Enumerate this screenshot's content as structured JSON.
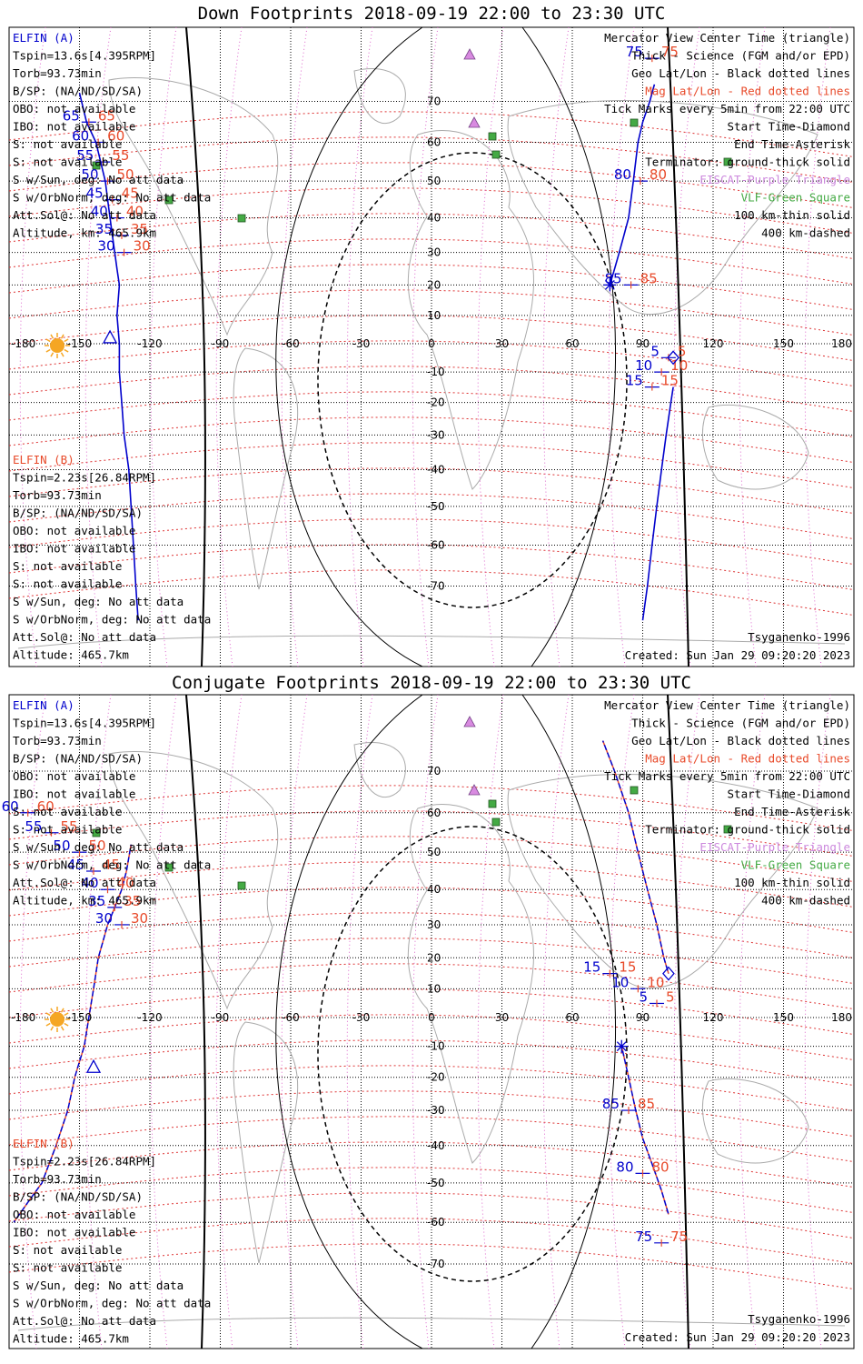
{
  "panels": [
    {
      "title": "Down Footprints 2018-09-19 22:00 to 23:30 UTC",
      "elfin_a": {
        "header": "ELFIN (A)",
        "lines": [
          "Tspin=13.6s[4.395RPM]",
          "Torb=93.73min",
          "B/SP: (NA/ND/SD/SA)",
          "OBO: not available",
          "IBO: not available",
          "S: not available",
          "S: not available",
          "S w/Sun, deg: No att data",
          "S w/OrbNorm, deg: No att data",
          "Att.Sol@: No att data",
          "Altitude, km: 465.9km"
        ]
      },
      "elfin_b": {
        "header": "ELFIN (B)",
        "lines": [
          "Tspin=2.23s[26.84RPM]",
          "Torb=93.73min",
          "B/SP: (NA/ND/SD/SA)",
          "OBO: not available",
          "IBO: not available",
          "S: not available",
          "S: not available",
          "S w/Sun, deg: No att data",
          "S w/OrbNorm, deg: No att data",
          "Att.Sol@: No att data",
          "Altitude: 465.7km"
        ]
      },
      "legend": [
        {
          "text": "Mercator View Center Time (triangle)",
          "color": "black"
        },
        {
          "text": "Thick - Science (FGM and/or EPD)",
          "color": "black"
        },
        {
          "text": "Geo Lat/Lon - Black dotted lines",
          "color": "black"
        },
        {
          "text": "Mag Lat/Lon - Red dotted lines",
          "color": "red"
        },
        {
          "text": "Tick Marks every 5min from 22:00 UTC",
          "color": "black"
        },
        {
          "text": "Start Time-Diamond",
          "color": "black"
        },
        {
          "text": "End Time-Asterisk",
          "color": "black"
        },
        {
          "text": "Terminator: ground-thick solid",
          "color": "black"
        },
        {
          "text": "EISCAT-Purple Triangle",
          "color": "magenta"
        },
        {
          "text": "VLF-Green Square",
          "color": "green"
        },
        {
          "text": "100 km-thin solid",
          "color": "black"
        },
        {
          "text": "400 km-dashed",
          "color": "black"
        }
      ],
      "model": "Tsyganenko-1996",
      "created": "Created: Sun Jan 29 09:20:20 2023",
      "track_a": [
        [
          -150,
          72
        ],
        [
          -147,
          65
        ],
        [
          -143,
          60
        ],
        [
          -141,
          55
        ],
        [
          -139,
          50
        ],
        [
          -138,
          45
        ],
        [
          -137,
          40
        ],
        [
          -136,
          35
        ],
        [
          -135,
          30
        ],
        [
          -134,
          25
        ],
        [
          -133,
          20
        ],
        [
          -134,
          10
        ],
        [
          -133,
          0
        ],
        [
          -133,
          -10
        ],
        [
          -132,
          -20
        ],
        [
          -131,
          -30
        ],
        [
          -130,
          -35
        ],
        [
          -129,
          -40
        ],
        [
          -128,
          -50
        ],
        [
          -127,
          -60
        ],
        [
          -126,
          -70
        ],
        [
          -125,
          -78
        ]
      ],
      "marks_a": [
        {
          "lat": 65,
          "lon": -146,
          "blue": "65",
          "red": "65"
        },
        {
          "lat": 60,
          "lon": -142,
          "blue": "60",
          "red": "60"
        },
        {
          "lat": 55,
          "lon": -140,
          "blue": "55",
          "red": "55"
        },
        {
          "lat": 50,
          "lon": -138,
          "blue": "50",
          "red": "50"
        },
        {
          "lat": 45,
          "lon": -136,
          "blue": "45",
          "red": "45"
        },
        {
          "lat": 40,
          "lon": -134,
          "blue": "40",
          "red": "40"
        },
        {
          "lat": 35,
          "lon": -132,
          "blue": "35",
          "red": "35"
        },
        {
          "lat": 30,
          "lon": -131,
          "blue": "30",
          "red": "30"
        }
      ],
      "track_b": [
        [
          95,
          74
        ],
        [
          93,
          70
        ],
        [
          90,
          65
        ],
        [
          88,
          60
        ],
        [
          86,
          50
        ],
        [
          84,
          40
        ],
        [
          82,
          35
        ],
        [
          80,
          30
        ],
        [
          78,
          25
        ],
        [
          76,
          20
        ]
      ],
      "marks_b": [
        {
          "lat": 75,
          "lon": 94,
          "blue": "75",
          "red": "75"
        },
        {
          "lat": 80,
          "lon": 89,
          "blue": "80",
          "red": "80"
        },
        {
          "lat": 85,
          "lon": 85,
          "blue": "85",
          "red": "85"
        }
      ],
      "track_c": [
        [
          103,
          -15
        ],
        [
          102,
          -20
        ],
        [
          100,
          -30
        ],
        [
          98,
          -40
        ],
        [
          96,
          -50
        ],
        [
          94,
          -60
        ],
        [
          92,
          -70
        ],
        [
          90,
          -78
        ]
      ],
      "marks_c": [
        {
          "lat": -5,
          "lon": 101,
          "blue": "5",
          "red": "5"
        },
        {
          "lat": -10,
          "lon": 98,
          "blue": "10",
          "red": "10"
        },
        {
          "lat": -15,
          "lon": 94,
          "blue": "15",
          "red": "15"
        }
      ]
    },
    {
      "title": "Conjugate Footprints 2018-09-19 22:00 to 23:30 UTC",
      "elfin_a": {
        "header": "ELFIN (A)",
        "lines": [
          "Tspin=13.6s[4.395RPM]",
          "Torb=93.73min",
          "B/SP: (NA/ND/SD/SA)",
          "OBO: not available",
          "IBO: not available",
          "S: not available",
          "S: not available",
          "S w/Sun, deg: No att data",
          "S w/OrbNorm, deg: No att data",
          "Att.Sol@: No att data",
          "Altitude, km: 465.9km"
        ]
      },
      "elfin_b": {
        "header": "ELFIN (B)",
        "lines": [
          "Tspin=2.23s[26.84RPM]",
          "Torb=93.73min",
          "B/SP: (NA/ND/SD/SA)",
          "OBO: not available",
          "IBO: not available",
          "S: not available",
          "S: not available",
          "S w/Sun, deg: No att data",
          "S w/OrbNorm, deg: No att data",
          "Att.Sol@: No att data",
          "Altitude: 465.7km"
        ]
      },
      "legend": [
        {
          "text": "Mercator View Center Time (triangle)",
          "color": "black"
        },
        {
          "text": "Thick - Science (FGM and/or EPD)",
          "color": "black"
        },
        {
          "text": "Geo Lat/Lon - Black dotted lines",
          "color": "black"
        },
        {
          "text": "Mag Lat/Lon - Red dotted lines",
          "color": "red"
        },
        {
          "text": "Tick Marks every 5min from 22:00 UTC",
          "color": "black"
        },
        {
          "text": "Start Time-Diamond",
          "color": "black"
        },
        {
          "text": "End Time-Asterisk",
          "color": "black"
        },
        {
          "text": "Terminator: ground-thick solid",
          "color": "black"
        },
        {
          "text": "EISCAT-Purple Triangle",
          "color": "magenta"
        },
        {
          "text": "VLF-Green Square",
          "color": "green"
        },
        {
          "text": "100 km-thin solid",
          "color": "black"
        },
        {
          "text": "400 km-dashed",
          "color": "black"
        }
      ],
      "model": "Tsyganenko-1996",
      "created": "Created: Sun Jan 29 09:20:20 2023",
      "track_a": [
        [
          -128,
          52
        ],
        [
          -130,
          45
        ],
        [
          -132,
          40
        ],
        [
          -135,
          35
        ],
        [
          -138,
          30
        ],
        [
          -140,
          25
        ],
        [
          -142,
          20
        ],
        [
          -144,
          10
        ],
        [
          -146,
          0
        ],
        [
          -148,
          -10
        ],
        [
          -150,
          -15
        ],
        [
          -152,
          -20
        ],
        [
          -155,
          -30
        ],
        [
          -160,
          -40
        ],
        [
          -166,
          -50
        ],
        [
          -172,
          -55
        ],
        [
          -178,
          -60
        ]
      ],
      "marks_a": [
        {
          "lat": 30,
          "lon": -132,
          "blue": "30",
          "red": "30"
        },
        {
          "lat": 35,
          "lon": -135,
          "blue": "35",
          "red": "35"
        },
        {
          "lat": 40,
          "lon": -138,
          "blue": "40",
          "red": "40"
        },
        {
          "lat": 45,
          "lon": -144,
          "blue": "45",
          "red": "45"
        },
        {
          "lat": 50,
          "lon": -150,
          "blue": "50",
          "red": "50"
        },
        {
          "lat": 55,
          "lon": -162,
          "blue": "55",
          "red": "55"
        },
        {
          "lat": 60,
          "lon": -172,
          "blue": "60",
          "red": "60"
        }
      ],
      "track_b": [
        [
          73,
          77
        ],
        [
          78,
          70
        ],
        [
          84,
          60
        ],
        [
          88,
          50
        ],
        [
          92,
          40
        ],
        [
          96,
          30
        ],
        [
          99,
          20
        ],
        [
          101,
          15
        ]
      ],
      "marks_b": [
        {
          "lat": 15,
          "lon": 76,
          "blue": "15",
          "red": "15"
        },
        {
          "lat": 10,
          "lon": 88,
          "blue": "10",
          "red": "10"
        },
        {
          "lat": 5,
          "lon": 96,
          "blue": "5",
          "red": "5"
        }
      ],
      "track_c": [
        [
          81,
          -10
        ],
        [
          84,
          -20
        ],
        [
          87,
          -30
        ],
        [
          90,
          -38
        ],
        [
          94,
          -45
        ],
        [
          98,
          -52
        ],
        [
          101,
          -58
        ]
      ],
      "marks_c": [
        {
          "lat": -85,
          "lon": 84,
          "blue": "85",
          "red": "85"
        },
        {
          "lat": -80,
          "lon": 90,
          "blue": "80",
          "red": "80"
        },
        {
          "lat": -75,
          "lon": 98,
          "blue": "75",
          "red": "75"
        }
      ]
    }
  ],
  "axis": {
    "lon_ticks": [
      "-180",
      "-150",
      "-120",
      "-90",
      "-60",
      "-30",
      "0",
      "30",
      "60",
      "90",
      "120",
      "150",
      "180"
    ],
    "lat_ticks": [
      "70",
      "60",
      "50",
      "40",
      "30",
      "20",
      "10",
      "-10",
      "-20",
      "-30",
      "-40",
      "-50",
      "-60",
      "-70"
    ]
  },
  "colors": {
    "blue": "#0000cc",
    "red": "#e84a2a",
    "magenta": "#cc88dd",
    "green": "#44aa44",
    "sun": "#f5a623"
  }
}
